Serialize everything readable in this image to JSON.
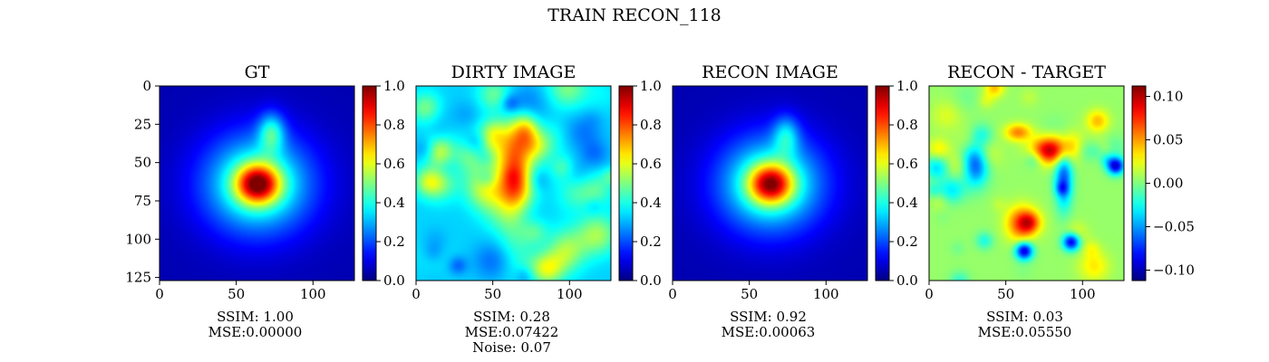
{
  "figure": {
    "title": "TRAIN RECON_118"
  },
  "colors": {
    "colormap": "jet",
    "axis": "#000000",
    "background": "#ffffff"
  },
  "chart_data": [
    {
      "type": "heatmap",
      "title": "GT",
      "image_size": 128,
      "xlim": [
        0,
        127
      ],
      "ylim": [
        127,
        0
      ],
      "xticks": [
        0,
        50,
        100
      ],
      "yticks": [
        0,
        25,
        50,
        75,
        100,
        125
      ],
      "colorbar": {
        "range": [
          0,
          1
        ],
        "ticks": [
          "0.0",
          "0.2",
          "0.4",
          "0.6",
          "0.8",
          "1.0"
        ],
        "tick_values": [
          0,
          0.2,
          0.4,
          0.6,
          0.8,
          1.0
        ]
      },
      "metrics": [
        "SSIM: 1.00",
        "MSE:0.00000"
      ]
    },
    {
      "type": "heatmap",
      "title": "DIRTY IMAGE",
      "image_size": 128,
      "xlim": [
        0,
        127
      ],
      "ylim": [
        127,
        0
      ],
      "xticks": [
        0,
        50,
        100
      ],
      "colorbar": {
        "range": [
          0,
          1
        ],
        "ticks": [
          "0.0",
          "0.2",
          "0.4",
          "0.6",
          "0.8",
          "1.0"
        ],
        "tick_values": [
          0,
          0.2,
          0.4,
          0.6,
          0.8,
          1.0
        ]
      },
      "metrics": [
        "SSIM: 0.28",
        "MSE:0.07422",
        "Noise: 0.07"
      ]
    },
    {
      "type": "heatmap",
      "title": "RECON IMAGE",
      "image_size": 128,
      "xlim": [
        0,
        127
      ],
      "ylim": [
        127,
        0
      ],
      "xticks": [
        0,
        50,
        100
      ],
      "colorbar": {
        "range": [
          0,
          1
        ],
        "ticks": [
          "0.0",
          "0.2",
          "0.4",
          "0.6",
          "0.8",
          "1.0"
        ],
        "tick_values": [
          0,
          0.2,
          0.4,
          0.6,
          0.8,
          1.0
        ]
      },
      "metrics": [
        "SSIM: 0.92",
        "MSE:0.00063"
      ]
    },
    {
      "type": "heatmap",
      "title": "RECON - TARGET",
      "image_size": 128,
      "xlim": [
        0,
        127
      ],
      "ylim": [
        127,
        0
      ],
      "xticks": [
        0,
        50,
        100
      ],
      "colorbar": {
        "range": [
          -0.112,
          0.112
        ],
        "ticks": [
          "−0.10",
          "−0.05",
          "0.00",
          "0.05",
          "0.10"
        ],
        "tick_values": [
          -0.1,
          -0.05,
          0.0,
          0.05,
          0.1
        ]
      },
      "metrics": [
        "SSIM: 0.03",
        "MSE:0.05550"
      ]
    }
  ]
}
